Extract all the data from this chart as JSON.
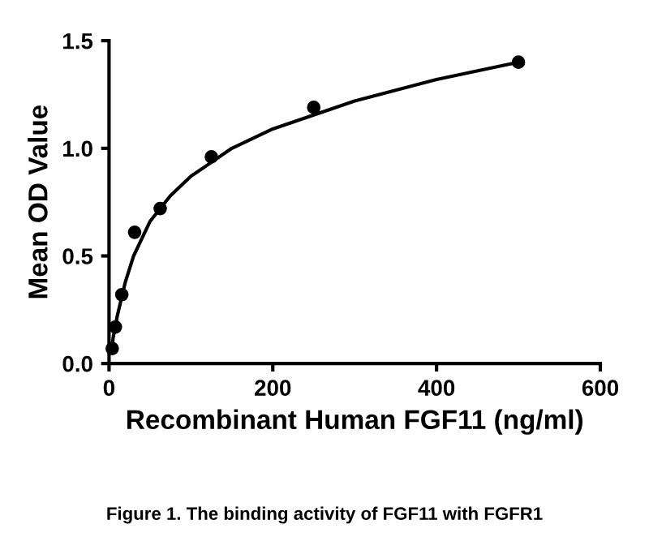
{
  "chart_data": {
    "type": "scatter",
    "xlabel": "Recombinant Human FGF11 (ng/ml)",
    "ylabel": "Mean OD Value",
    "series": [
      {
        "color": "#000000",
        "marker": "circle",
        "x": [
          3.9,
          7.8,
          15.6,
          31.25,
          62.5,
          125,
          250,
          500
        ],
        "values": [
          0.07,
          0.17,
          0.32,
          0.61,
          0.72,
          0.96,
          1.19,
          1.4
        ]
      },
      {
        "type": "line",
        "color": "#000000",
        "marker": "none",
        "line_style": "solid",
        "x": [
          3,
          5,
          10,
          20,
          30,
          50,
          75,
          100,
          150,
          200,
          300,
          400,
          500
        ],
        "values": [
          0.05,
          0.12,
          0.22,
          0.38,
          0.5,
          0.66,
          0.78,
          0.87,
          1.0,
          1.09,
          1.22,
          1.32,
          1.4
        ]
      }
    ],
    "xlim": [
      0,
      600
    ],
    "xticks": [
      0,
      200,
      400,
      600
    ],
    "ylim": [
      0,
      1.5
    ],
    "yticks": [
      {
        "value": 0,
        "label": "0.0"
      },
      0.5,
      {
        "value": 1,
        "label": "1.0"
      },
      1.5
    ],
    "grid": false,
    "legend": false,
    "annotations": [
      "Figure 1. The binding activity of FGF11 with FGFR1"
    ]
  }
}
